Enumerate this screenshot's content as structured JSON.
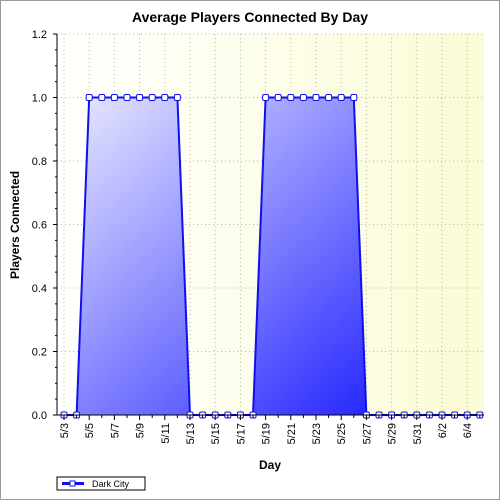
{
  "chart_data": {
    "type": "area",
    "title": "Average Players Connected By Day",
    "xlabel": "Day",
    "ylabel": "Players Connected",
    "ylim": [
      0,
      1.2
    ],
    "yticks": [
      "0.0",
      "0.2",
      "0.4",
      "0.6",
      "0.8",
      "1.0",
      "1.2"
    ],
    "ytick_values": [
      0,
      0.2,
      0.4,
      0.6,
      0.8,
      1.0,
      1.2
    ],
    "xtick_labels": [
      "5/3",
      "5/5",
      "5/7",
      "5/9",
      "5/11",
      "5/13",
      "5/15",
      "5/17",
      "5/19",
      "5/21",
      "5/23",
      "5/25",
      "5/27",
      "5/29",
      "5/31",
      "6/2",
      "6/4"
    ],
    "x": [
      "5/3",
      "5/4",
      "5/5",
      "5/6",
      "5/7",
      "5/8",
      "5/9",
      "5/10",
      "5/11",
      "5/12",
      "5/13",
      "5/14",
      "5/15",
      "5/16",
      "5/17",
      "5/18",
      "5/19",
      "5/20",
      "5/21",
      "5/22",
      "5/23",
      "5/24",
      "5/25",
      "5/26",
      "5/27",
      "5/28",
      "5/29",
      "5/30",
      "5/31",
      "6/1",
      "6/2",
      "6/3",
      "6/4",
      "6/5"
    ],
    "series": [
      {
        "name": "Dark City",
        "values": [
          0,
          0,
          1,
          1,
          1,
          1,
          1,
          1,
          1,
          1,
          0,
          0,
          0,
          0,
          0,
          0,
          1,
          1,
          1,
          1,
          1,
          1,
          1,
          1,
          0,
          0,
          0,
          0,
          0,
          0,
          0,
          0,
          0,
          0
        ]
      }
    ],
    "grid": true,
    "legend": "bottom-left",
    "colors": {
      "line": "#1010ee",
      "fill_light": "#f4f4ff",
      "fill_dark": "#1818ff",
      "plot_bg": "#fdfde6",
      "grid": "#b8b8a0"
    }
  }
}
